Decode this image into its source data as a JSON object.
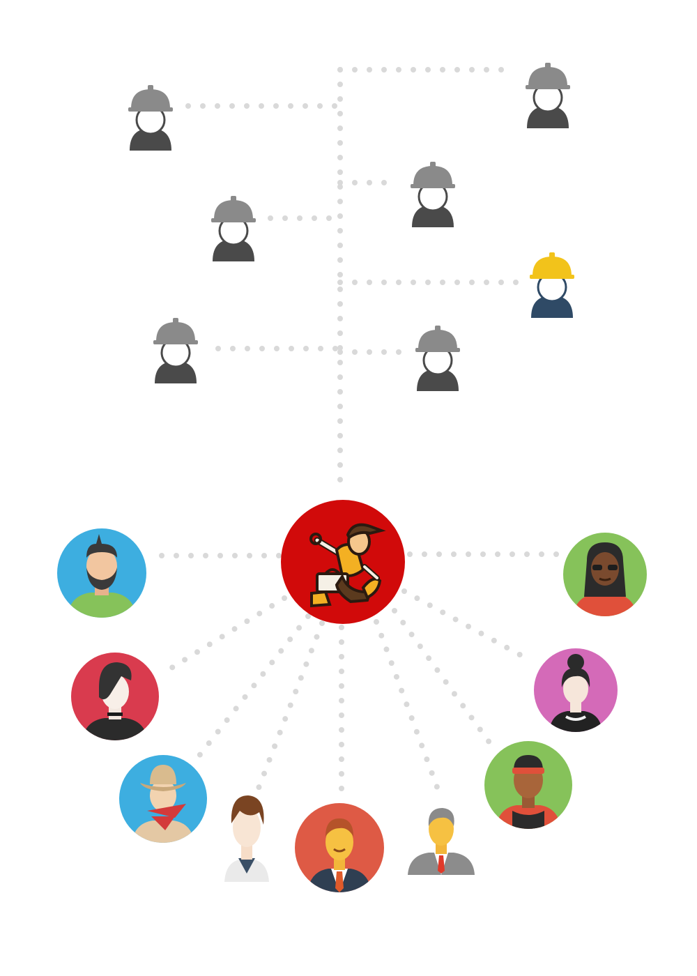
{
  "colors": {
    "background": "#ffffff",
    "connector": "#d9d9d9",
    "helmet_gray": "#8a8a8a",
    "body_gray": "#4a4a4a",
    "helmet_yellow": "#f2c31b",
    "body_navy": "#2f4a66",
    "hub_red": "#d10a0a"
  },
  "hub": {
    "name": "worker-mascot-hub",
    "icon": "worker-with-toolbox-icon",
    "color": "#d10a0a"
  },
  "workers": [
    {
      "name": "worker-gray-1",
      "icon": "hardhat-worker-icon",
      "status": "inactive"
    },
    {
      "name": "worker-gray-2",
      "icon": "hardhat-worker-icon",
      "status": "inactive"
    },
    {
      "name": "worker-gray-3",
      "icon": "hardhat-worker-icon",
      "status": "inactive"
    },
    {
      "name": "worker-gray-4",
      "icon": "hardhat-worker-icon",
      "status": "inactive"
    },
    {
      "name": "worker-yellow",
      "icon": "hardhat-worker-icon",
      "status": "active"
    },
    {
      "name": "worker-gray-5",
      "icon": "hardhat-worker-icon",
      "status": "inactive"
    },
    {
      "name": "worker-gray-6",
      "icon": "hardhat-worker-icon",
      "status": "inactive"
    }
  ],
  "clients": [
    {
      "name": "client-bearded-man",
      "icon": "bearded-man-avatar-icon",
      "bg": "#3daee0"
    },
    {
      "name": "client-emo-woman",
      "icon": "emo-woman-avatar-icon",
      "bg": "#d93b4e"
    },
    {
      "name": "client-cowboy",
      "icon": "cowboy-avatar-icon",
      "bg": "#3daee0"
    },
    {
      "name": "client-young-man",
      "icon": "young-man-avatar-icon",
      "bg": "#ffffff"
    },
    {
      "name": "client-businessman",
      "icon": "businessman-avatar-icon",
      "bg": "#de5a45"
    },
    {
      "name": "client-gray-haired-man",
      "icon": "gray-haired-man-avatar-icon",
      "bg": "#ffffff"
    },
    {
      "name": "client-athlete",
      "icon": "athlete-headband-avatar-icon",
      "bg": "#86c25a"
    },
    {
      "name": "client-updo-woman",
      "icon": "updo-woman-avatar-icon",
      "bg": "#d46ab8"
    },
    {
      "name": "client-dreadlocks-woman",
      "icon": "dreadlocks-woman-avatar-icon",
      "bg": "#86c25a"
    }
  ]
}
